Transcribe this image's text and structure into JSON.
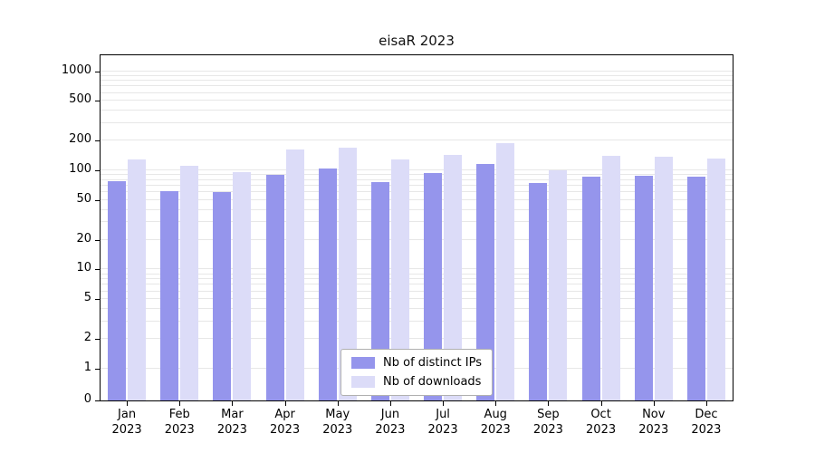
{
  "chart_data": {
    "type": "bar",
    "title": "eisaR 2023",
    "categories": [
      "Jan",
      "Feb",
      "Mar",
      "Apr",
      "May",
      "Jun",
      "Jul",
      "Aug",
      "Sep",
      "Oct",
      "Nov",
      "Dec"
    ],
    "year": "2023",
    "yticks": [
      0,
      1,
      2,
      5,
      10,
      20,
      50,
      100,
      200,
      500,
      1000
    ],
    "yscale": "log",
    "ylim": [
      0,
      1400
    ],
    "grid": true,
    "legend_position": "lower center inside plot",
    "series": [
      {
        "name": "Nb of distinct IPs",
        "color": "#9595ec",
        "values": [
          78,
          62,
          60,
          90,
          105,
          76,
          93,
          115,
          74,
          86,
          89,
          87
        ]
      },
      {
        "name": "Nb of downloads",
        "color": "#dcdcf8",
        "values": [
          130,
          112,
          96,
          162,
          168,
          130,
          142,
          188,
          101,
          140,
          138,
          131
        ]
      }
    ]
  }
}
